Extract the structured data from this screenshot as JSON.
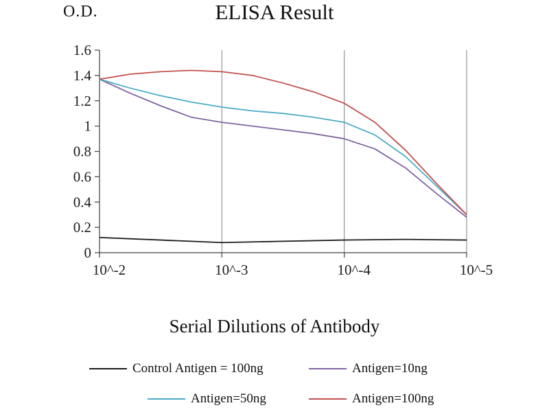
{
  "chart_data": {
    "type": "line",
    "title": "ELISA Result",
    "ylabel": "O.D.",
    "xlabel": "Serial Dilutions of Antibody",
    "xlim": [
      0,
      3
    ],
    "ylim": [
      0,
      1.6
    ],
    "grid": "vertical-only",
    "legend_position": "bottom",
    "gridlines_x": [
      1,
      2,
      3
    ],
    "xticks": [
      {
        "v": 0,
        "label": "10^-2"
      },
      {
        "v": 1,
        "label": "10^-3"
      },
      {
        "v": 2,
        "label": "10^-4"
      },
      {
        "v": 3,
        "label": "10^-5"
      }
    ],
    "yticks": [
      {
        "v": 0,
        "label": "0"
      },
      {
        "v": 0.2,
        "label": "0.2"
      },
      {
        "v": 0.4,
        "label": "0.4"
      },
      {
        "v": 0.6,
        "label": "0.6"
      },
      {
        "v": 0.8,
        "label": "0.8"
      },
      {
        "v": 1,
        "label": "1"
      },
      {
        "v": 1.2,
        "label": "1.2"
      },
      {
        "v": 1.4,
        "label": "1.4"
      },
      {
        "v": 1.6,
        "label": "1.6"
      }
    ],
    "series": [
      {
        "name": "Control Antigen = 100ng",
        "color": "#1a1a1a",
        "points": [
          [
            0,
            0.12
          ],
          [
            0.5,
            0.1
          ],
          [
            1,
            0.08
          ],
          [
            1.5,
            0.09
          ],
          [
            2,
            0.1
          ],
          [
            2.5,
            0.105
          ],
          [
            3,
            0.1
          ]
        ]
      },
      {
        "name": "Antigen=10ng",
        "color": "#8064a2",
        "points": [
          [
            0,
            1.37
          ],
          [
            0.25,
            1.26
          ],
          [
            0.5,
            1.16
          ],
          [
            0.75,
            1.07
          ],
          [
            1,
            1.03
          ],
          [
            1.25,
            1.0
          ],
          [
            1.5,
            0.97
          ],
          [
            1.75,
            0.94
          ],
          [
            2,
            0.9
          ],
          [
            2.25,
            0.82
          ],
          [
            2.5,
            0.67
          ],
          [
            2.75,
            0.47
          ],
          [
            3,
            0.28
          ]
        ]
      },
      {
        "name": "Antigen=50ng",
        "color": "#4bacc6",
        "points": [
          [
            0,
            1.37
          ],
          [
            0.25,
            1.3
          ],
          [
            0.5,
            1.24
          ],
          [
            0.75,
            1.19
          ],
          [
            1,
            1.15
          ],
          [
            1.25,
            1.12
          ],
          [
            1.5,
            1.1
          ],
          [
            1.75,
            1.07
          ],
          [
            2,
            1.03
          ],
          [
            2.25,
            0.93
          ],
          [
            2.5,
            0.76
          ],
          [
            2.75,
            0.53
          ],
          [
            3,
            0.3
          ]
        ]
      },
      {
        "name": "Antigen=100ng",
        "color": "#c0504d",
        "points": [
          [
            0,
            1.37
          ],
          [
            0.25,
            1.41
          ],
          [
            0.5,
            1.43
          ],
          [
            0.75,
            1.44
          ],
          [
            1,
            1.43
          ],
          [
            1.25,
            1.4
          ],
          [
            1.5,
            1.34
          ],
          [
            1.75,
            1.27
          ],
          [
            2,
            1.18
          ],
          [
            2.25,
            1.03
          ],
          [
            2.5,
            0.81
          ],
          [
            2.75,
            0.55
          ],
          [
            3,
            0.3
          ]
        ]
      }
    ]
  }
}
